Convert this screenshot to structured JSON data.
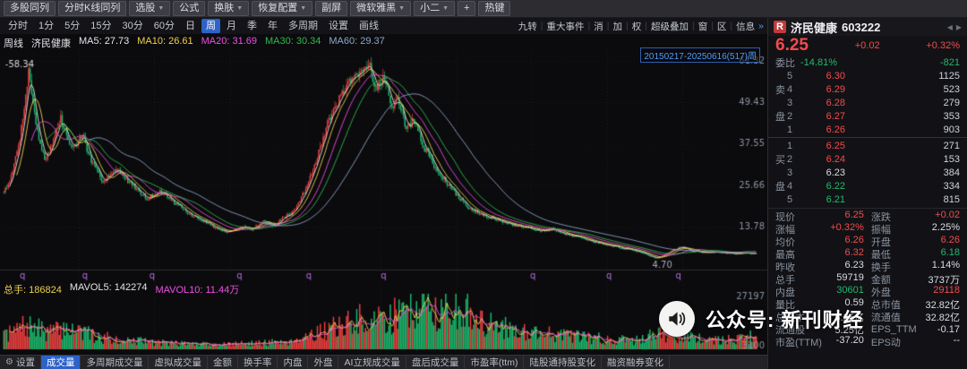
{
  "topbar1": {
    "items": [
      {
        "label": "多股同列",
        "dropdown": false
      },
      {
        "label": "分时K线同列",
        "dropdown": false
      },
      {
        "label": "选股",
        "dropdown": true
      },
      {
        "label": "公式",
        "dropdown": false
      },
      {
        "label": "换肤",
        "dropdown": true
      },
      {
        "label": "恢复配置",
        "dropdown": true
      },
      {
        "label": "副屏",
        "dropdown": false
      },
      {
        "label": "微软雅黑",
        "dropdown": true
      },
      {
        "label": "小二",
        "dropdown": true
      },
      {
        "label": "+",
        "dropdown": false
      },
      {
        "label": "热键",
        "dropdown": false
      }
    ]
  },
  "topbar2": {
    "periods": [
      "分时",
      "1分",
      "5分",
      "15分",
      "30分",
      "60分",
      "日",
      "周",
      "月",
      "季",
      "年",
      "多周期",
      "设置",
      "画线"
    ],
    "active_period": "周",
    "right_items": [
      "九转",
      "重大事件",
      "消",
      "加",
      "权",
      "超级叠加",
      "窗",
      "区",
      "信息"
    ]
  },
  "chart_header": {
    "period_label": "周线",
    "name": "济民健康",
    "ma_items": [
      {
        "label": "MA5:",
        "value": "27.73",
        "color": "#e4e4e8"
      },
      {
        "label": "MA10:",
        "value": "26.61",
        "color": "#f0d24a"
      },
      {
        "label": "MA20:",
        "value": "31.69",
        "color": "#ee4fe2"
      },
      {
        "label": "MA30:",
        "value": "30.34",
        "color": "#35b84e"
      },
      {
        "label": "MA60:",
        "value": "29.37",
        "color": "#8ea8c8"
      }
    ],
    "range_label": "20150217-20250616(517)周"
  },
  "volume_header": {
    "items": [
      {
        "label": "总手:",
        "value": "186824",
        "color": "#f0d24a"
      },
      {
        "label": "MAVOL5:",
        "value": "142274",
        "color": "#e4e4e8"
      },
      {
        "label": "MAVOL10:",
        "value": "11.44万",
        "color": "#ee4fe2"
      }
    ]
  },
  "bottombar": {
    "settings_label": "设置",
    "tabs": [
      "成交量",
      "多周期成交量",
      "虚拟成交量",
      "金额",
      "换手率",
      "内盘",
      "外盘",
      "AI立规成交量",
      "盘后成交量",
      "市盈率(ttm)",
      "陆股通持股变化",
      "融资融券变化"
    ],
    "active_tab": "成交量"
  },
  "quote": {
    "market_label": "R",
    "name": "济民健康",
    "code": "603222",
    "price": "6.25",
    "change": "+0.02",
    "change_pct": "+0.32%",
    "weibi_label": "委比",
    "weibi": "-14.81%",
    "weicha": "-821",
    "prev_close": 6.23,
    "sell_group_label": "卖盘",
    "buy_group_label": "买盘",
    "asks": [
      {
        "level": "5",
        "price": "6.30",
        "vol": "1125"
      },
      {
        "level": "4",
        "price": "6.29",
        "vol": "523"
      },
      {
        "level": "3",
        "price": "6.28",
        "vol": "279"
      },
      {
        "level": "2",
        "price": "6.27",
        "vol": "353"
      },
      {
        "level": "1",
        "price": "6.26",
        "vol": "903"
      }
    ],
    "bids": [
      {
        "level": "1",
        "price": "6.25",
        "vol": "271"
      },
      {
        "level": "2",
        "price": "6.24",
        "vol": "153"
      },
      {
        "level": "3",
        "price": "6.23",
        "vol": "384"
      },
      {
        "level": "4",
        "price": "6.22",
        "vol": "334"
      },
      {
        "level": "5",
        "price": "6.21",
        "vol": "815"
      }
    ],
    "stats": [
      {
        "l1": "现价",
        "v1": "6.25",
        "c1": "up",
        "l2": "涨跌",
        "v2": "+0.02",
        "c2": "up"
      },
      {
        "l1": "涨幅",
        "v1": "+0.32%",
        "c1": "up",
        "l2": "振幅",
        "v2": "2.25%",
        "c2": "flat"
      },
      {
        "l1": "均价",
        "v1": "6.26",
        "c1": "up",
        "l2": "开盘",
        "v2": "6.26",
        "c2": "up"
      },
      {
        "l1": "最高",
        "v1": "6.32",
        "c1": "up",
        "l2": "最低",
        "v2": "6.18",
        "c2": "down"
      },
      {
        "l1": "昨收",
        "v1": "6.23",
        "c1": "flat",
        "l2": "换手",
        "v2": "1.14%",
        "c2": "flat"
      },
      {
        "l1": "总手",
        "v1": "59719",
        "c1": "flat",
        "l2": "金额",
        "v2": "3737万",
        "c2": "flat"
      },
      {
        "l1": "内盘",
        "v1": "30601",
        "c1": "down",
        "l2": "外盘",
        "v2": "29118",
        "c2": "up"
      },
      {
        "l1": "量比",
        "v1": "0.59",
        "c1": "flat",
        "l2": "总市值",
        "v2": "32.82亿",
        "c2": "flat"
      },
      {
        "l1": "总股本",
        "v1": "5.25亿",
        "c1": "flat",
        "l2": "流通值",
        "v2": "32.82亿",
        "c2": "flat"
      },
      {
        "l1": "流通股",
        "v1": "5.25亿",
        "c1": "flat",
        "l2": "EPS_TTM",
        "v2": "-0.17",
        "c2": "flat"
      },
      {
        "l1": "市盈(TTM)",
        "v1": "-37.20",
        "c1": "flat",
        "l2": "EPS动",
        "v2": "--",
        "c2": "flat"
      }
    ]
  },
  "watermark": {
    "text": "公众号: 新刊财经"
  },
  "chart_data": {
    "type": "candlestick+volume",
    "title": "济民健康 603222 周K线",
    "weeks": 517,
    "date_range": "20150217-20250616",
    "y_axis_labels": [
      61.32,
      49.43,
      37.55,
      25.66,
      13.78
    ],
    "y_max": 63.8,
    "y_min": 1.8,
    "vol_axis_labels": [
      "27197",
      "3100"
    ],
    "high_annotation": {
      "t": 0.033,
      "value": 58.34,
      "text": "-58.34"
    },
    "low_annotation": {
      "t": 0.87,
      "value": 4.7,
      "text": "4.70"
    },
    "ex_dividend_marks_t": [
      0.025,
      0.108,
      0.197,
      0.313,
      0.405,
      0.504,
      0.702,
      0.803,
      0.895
    ],
    "price_anchors": [
      [
        0.0,
        24
      ],
      [
        0.01,
        28
      ],
      [
        0.022,
        40
      ],
      [
        0.033,
        58.3
      ],
      [
        0.045,
        40
      ],
      [
        0.055,
        33
      ],
      [
        0.065,
        38
      ],
      [
        0.075,
        45
      ],
      [
        0.09,
        36
      ],
      [
        0.105,
        40
      ],
      [
        0.115,
        33
      ],
      [
        0.13,
        27
      ],
      [
        0.15,
        30
      ],
      [
        0.17,
        26
      ],
      [
        0.19,
        22
      ],
      [
        0.21,
        24
      ],
      [
        0.23,
        20
      ],
      [
        0.25,
        17
      ],
      [
        0.27,
        15
      ],
      [
        0.285,
        13
      ],
      [
        0.3,
        12.2
      ],
      [
        0.315,
        14
      ],
      [
        0.33,
        13
      ],
      [
        0.345,
        15.5
      ],
      [
        0.36,
        14
      ],
      [
        0.372,
        16.5
      ],
      [
        0.385,
        18
      ],
      [
        0.4,
        24
      ],
      [
        0.415,
        33
      ],
      [
        0.43,
        43
      ],
      [
        0.445,
        50
      ],
      [
        0.46,
        55
      ],
      [
        0.475,
        58
      ],
      [
        0.485,
        61
      ],
      [
        0.495,
        53
      ],
      [
        0.505,
        57
      ],
      [
        0.515,
        48
      ],
      [
        0.525,
        50
      ],
      [
        0.535,
        42
      ],
      [
        0.545,
        44
      ],
      [
        0.56,
        36
      ],
      [
        0.575,
        30
      ],
      [
        0.59,
        26
      ],
      [
        0.605,
        22
      ],
      [
        0.62,
        19
      ],
      [
        0.64,
        17
      ],
      [
        0.66,
        15.5
      ],
      [
        0.68,
        14
      ],
      [
        0.7,
        13.5
      ],
      [
        0.715,
        12.5
      ],
      [
        0.73,
        13.2
      ],
      [
        0.745,
        11.8
      ],
      [
        0.76,
        11
      ],
      [
        0.775,
        10
      ],
      [
        0.79,
        9.2
      ],
      [
        0.805,
        8.5
      ],
      [
        0.82,
        7.8
      ],
      [
        0.835,
        7.2
      ],
      [
        0.85,
        6.3
      ],
      [
        0.862,
        5.1
      ],
      [
        0.87,
        4.9
      ],
      [
        0.88,
        6.2
      ],
      [
        0.89,
        7.3
      ],
      [
        0.9,
        8.0
      ],
      [
        0.915,
        7.0
      ],
      [
        0.93,
        6.4
      ],
      [
        0.95,
        6.6
      ],
      [
        0.97,
        6.1
      ],
      [
        0.985,
        6.3
      ],
      [
        1.0,
        6.25
      ]
    ],
    "volume_anchors": [
      [
        0.0,
        0.3
      ],
      [
        0.03,
        0.55
      ],
      [
        0.06,
        0.4
      ],
      [
        0.09,
        0.5
      ],
      [
        0.12,
        0.3
      ],
      [
        0.16,
        0.22
      ],
      [
        0.2,
        0.16
      ],
      [
        0.25,
        0.13
      ],
      [
        0.3,
        0.12
      ],
      [
        0.35,
        0.15
      ],
      [
        0.38,
        0.2
      ],
      [
        0.42,
        0.4
      ],
      [
        0.45,
        0.55
      ],
      [
        0.47,
        0.7
      ],
      [
        0.49,
        0.6
      ],
      [
        0.52,
        0.8
      ],
      [
        0.55,
        1.0
      ],
      [
        0.58,
        0.85
      ],
      [
        0.61,
        0.95
      ],
      [
        0.64,
        0.6
      ],
      [
        0.68,
        0.45
      ],
      [
        0.72,
        0.38
      ],
      [
        0.76,
        0.3
      ],
      [
        0.8,
        0.24
      ],
      [
        0.84,
        0.2
      ],
      [
        0.87,
        0.38
      ],
      [
        0.9,
        0.3
      ],
      [
        0.94,
        0.2
      ],
      [
        0.97,
        0.24
      ],
      [
        1.0,
        0.3
      ]
    ],
    "colors": {
      "up": "#e8403e",
      "down": "#1db56a",
      "ma5": "#e4e4e8",
      "ma10": "#f0d24a",
      "ma20": "#ee4fe2",
      "ma30": "#35b84e",
      "ma60": "#8ea8c8",
      "volma5": "#f0d24a",
      "volma10": "#ee4fe2"
    }
  }
}
